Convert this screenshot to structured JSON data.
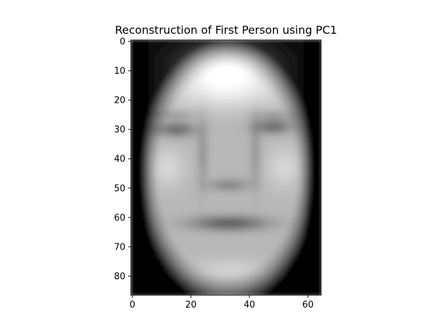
{
  "chart_data": {
    "type": "heatmap",
    "title": "Reconstruction of First Person using PC1",
    "xlabel": "",
    "ylabel": "",
    "colormap": "gray",
    "image_shape": [
      87,
      65
    ],
    "xlim": [
      -0.5,
      64.5
    ],
    "ylim": [
      86.5,
      -0.5
    ],
    "x_ticks": [
      0,
      20,
      40,
      60
    ],
    "y_ticks": [
      0,
      10,
      20,
      30,
      40,
      50,
      60,
      70,
      80
    ],
    "grid": false,
    "description_features": {
      "forehead_bright_center": [
        32,
        8
      ],
      "eyes_dark": [
        [
          15,
          30
        ],
        [
          48,
          29
        ]
      ],
      "nose_dark": [
        33,
        49
      ],
      "mouth_dark": [
        33,
        62
      ],
      "chin_bright": [
        33,
        78
      ]
    }
  }
}
